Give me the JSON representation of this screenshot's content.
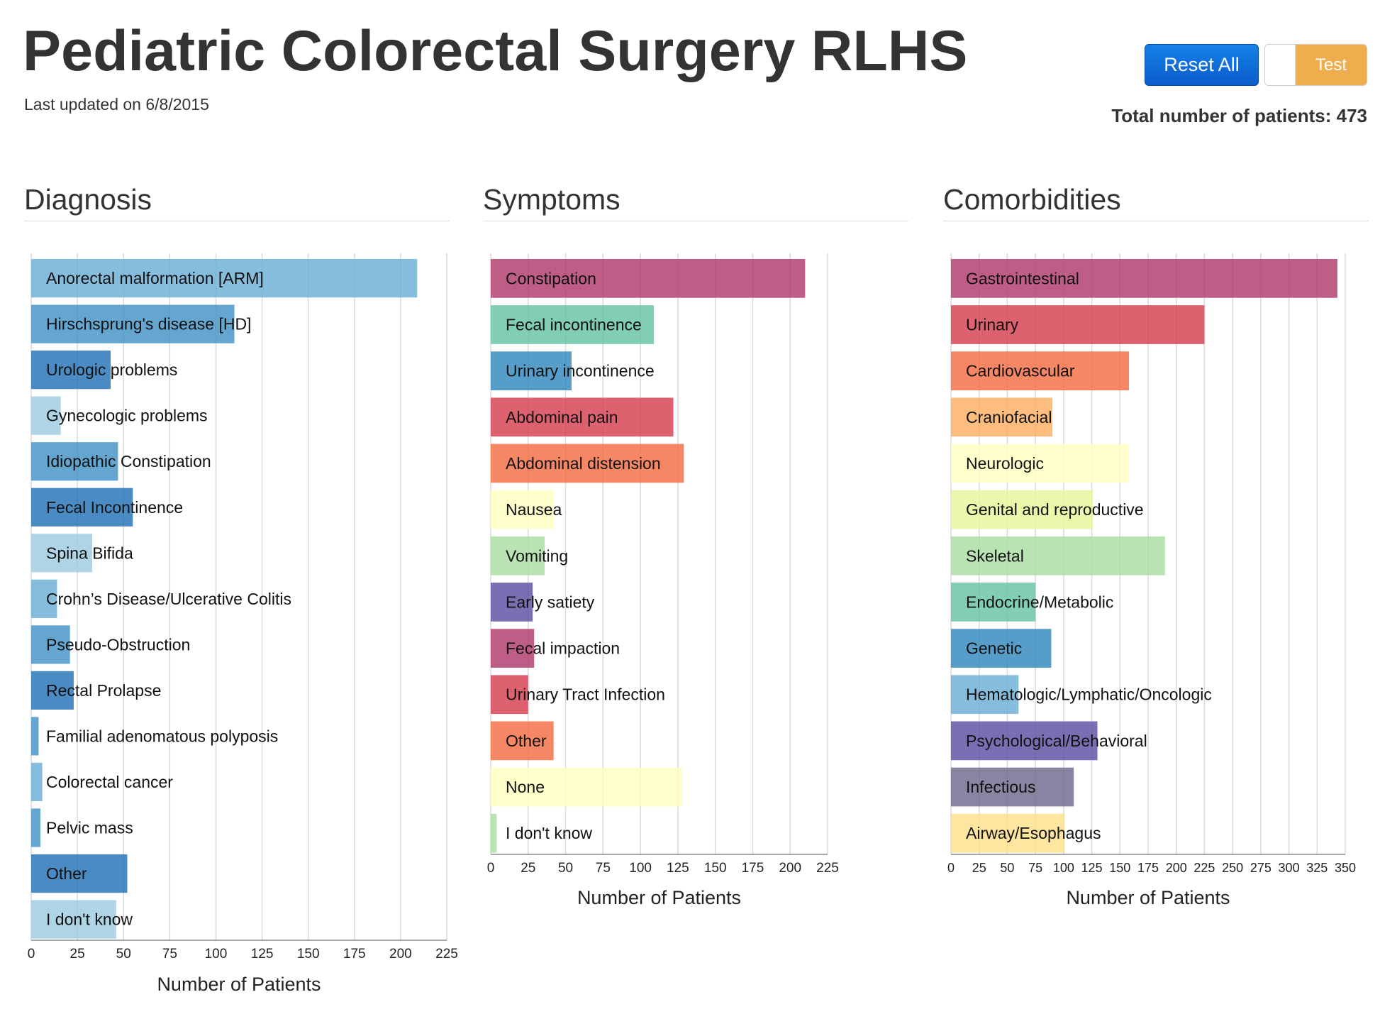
{
  "header": {
    "title": "Pediatric Colorectal Surgery RLHS",
    "last_updated": "Last updated on 6/8/2015",
    "reset_label": "Reset All",
    "toggle_label": "Test",
    "total_label": "Total number of patients: 473"
  },
  "panels": {
    "diagnosis": {
      "title": "Diagnosis"
    },
    "symptoms": {
      "title": "Symptoms"
    },
    "comorbidities": {
      "title": "Comorbidities"
    }
  },
  "chart_data": [
    {
      "type": "bar",
      "title": "Diagnosis",
      "orientation": "horizontal",
      "xlabel": "Number of Patients",
      "xlim": [
        0,
        225
      ],
      "ticks": [
        0,
        25,
        50,
        75,
        100,
        125,
        150,
        175,
        200,
        225
      ],
      "grid": true,
      "categories": [
        "Anorectal malformation [ARM]",
        "Hirschsprung's disease [HD]",
        "Urologic problems",
        "Gynecologic problems",
        "Idiopathic Constipation",
        "Fecal Incontinence",
        "Spina Bifida",
        "Crohn’s Disease/Ulcerative Colitis",
        "Pseudo-Obstruction",
        "Rectal Prolapse",
        "Familial adenomatous polyposis",
        "Colorectal cancer",
        "Pelvic mass",
        "Other",
        "I don't know"
      ],
      "values": [
        209,
        110,
        43,
        16,
        47,
        55,
        33,
        14,
        21,
        23,
        4,
        6,
        5,
        52,
        46
      ],
      "colors": [
        "#6baed6",
        "#4292c6",
        "#2171b5",
        "#9ecae1",
        "#4292c6",
        "#2171b5",
        "#9ecae1",
        "#6baed6",
        "#4292c6",
        "#2171b5",
        "#4292c6",
        "#6baed6",
        "#4292c6",
        "#2171b5",
        "#9ecae1"
      ]
    },
    {
      "type": "bar",
      "title": "Symptoms",
      "orientation": "horizontal",
      "xlabel": "Number of Patients",
      "xlim": [
        0,
        225
      ],
      "ticks": [
        0,
        25,
        50,
        75,
        100,
        125,
        150,
        175,
        200,
        225
      ],
      "grid": true,
      "categories": [
        "Constipation",
        "Fecal incontinence",
        "Urinary incontinence",
        "Abdominal pain",
        "Abdominal distension",
        "Nausea",
        "Vomiting",
        "Early satiety",
        "Fecal impaction",
        "Urinary Tract Infection",
        "Other",
        "None",
        "I don't know"
      ],
      "values": [
        210,
        109,
        54,
        122,
        129,
        42,
        36,
        28,
        29,
        25,
        42,
        128,
        4
      ],
      "colors": [
        "#b03a6b",
        "#66c2a5",
        "#3288bd",
        "#d53e4f",
        "#f46d43",
        "#ffffbf",
        "#abdda4",
        "#5e4fa2",
        "#b03a6b",
        "#d53e4f",
        "#f46d43",
        "#ffffbf",
        "#abdda4"
      ]
    },
    {
      "type": "bar",
      "title": "Comorbidities",
      "orientation": "horizontal",
      "xlabel": "Number of Patients",
      "xlim": [
        0,
        350
      ],
      "ticks": [
        0,
        25,
        50,
        75,
        100,
        125,
        150,
        175,
        200,
        225,
        250,
        275,
        300,
        325,
        350
      ],
      "grid": true,
      "categories": [
        "Gastrointestinal",
        "Urinary",
        "Cardiovascular",
        "Craniofacial",
        "Neurologic",
        "Genital and reproductive",
        "Skeletal",
        "Endocrine/Metabolic",
        "Genetic",
        "Hematologic/Lymphatic/Oncologic",
        "Psychological/Behavioral",
        "Infectious",
        "Airway/Esophagus"
      ],
      "values": [
        343,
        225,
        158,
        90,
        158,
        126,
        190,
        75,
        89,
        60,
        130,
        109,
        101
      ],
      "colors": [
        "#b03a6b",
        "#d53e4f",
        "#f46d43",
        "#fdae61",
        "#ffffbf",
        "#e6f598",
        "#abdda4",
        "#66c2a5",
        "#3288bd",
        "#6baed6",
        "#5e4fa2",
        "#6e6a8e",
        "#fee08b"
      ]
    }
  ]
}
